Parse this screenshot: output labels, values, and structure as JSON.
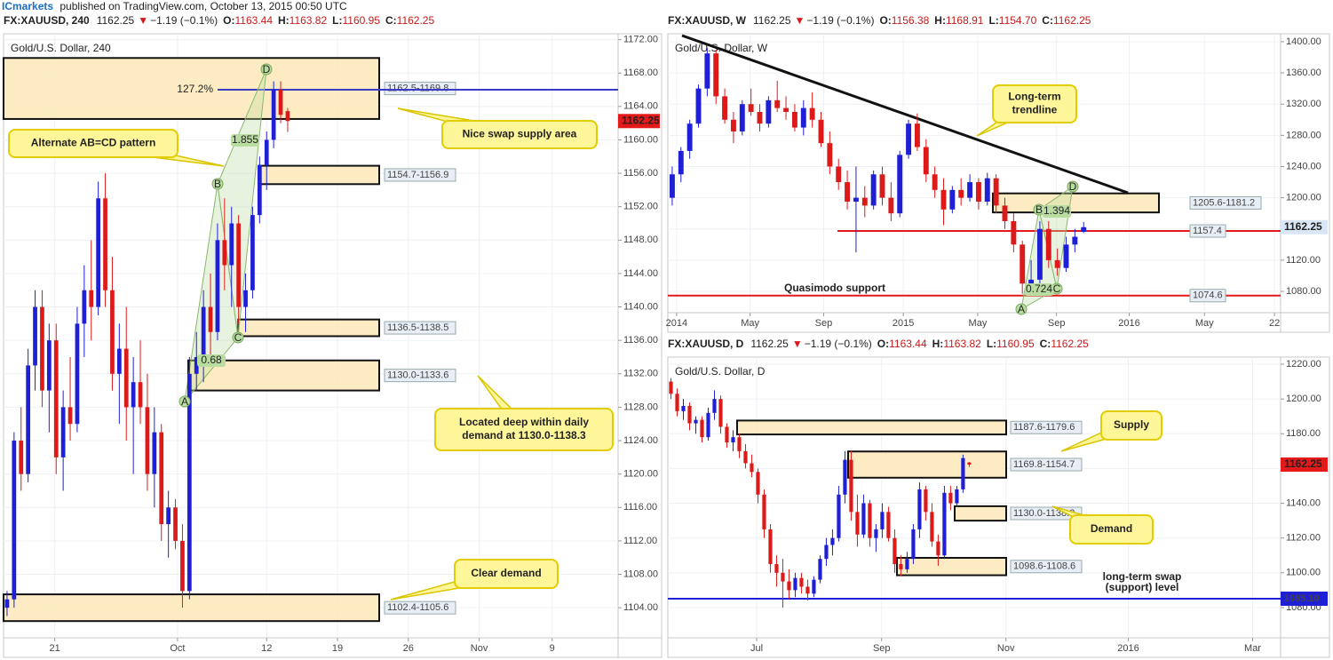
{
  "header": {
    "publisher": "ICmarkets",
    "published": "published on TradingView.com, October 13, 2015 00:50 UTC"
  },
  "chart_data": [
    {
      "type": "candlestick",
      "symbol": "FX:XAUUSD, 240",
      "last": "1162.25",
      "arrow": "▼",
      "change": "−1.19 (−0.1%)",
      "ohlc": [
        {
          "key": "O:",
          "value": "1163.44"
        },
        {
          "key": "H:",
          "value": "1163.82"
        },
        {
          "key": "L:",
          "value": "1160.95"
        },
        {
          "key": "C:",
          "value": "1162.25"
        }
      ],
      "title": "Gold/U.S. Dollar, 240",
      "up_color": "#1f1fd6",
      "down_color": "#dd1a1a",
      "open": [
        1104,
        1105,
        1124,
        1120,
        1133,
        1140,
        1130,
        1136,
        1122,
        1128,
        1126,
        1138,
        1142,
        1140,
        1153,
        1142,
        1132,
        1135,
        1128,
        1131,
        1128,
        1120,
        1125,
        1114,
        1116,
        1112,
        1106,
        1132,
        1134,
        1140,
        1137,
        1148,
        1145,
        1150,
        1140,
        1142,
        1151,
        1157,
        1160,
        1166,
        1163.44
      ],
      "high": [
        1106,
        1125,
        1128,
        1135,
        1142,
        1142,
        1138,
        1138,
        1130,
        1134,
        1140,
        1145,
        1148,
        1155,
        1156,
        1146,
        1138,
        1140,
        1134,
        1136,
        1132,
        1128,
        1126,
        1118,
        1117,
        1114,
        1134,
        1137,
        1142,
        1144,
        1150,
        1153,
        1152,
        1151,
        1144,
        1152,
        1158,
        1161,
        1167,
        1167,
        1163.82
      ],
      "low": [
        1103,
        1104,
        1118,
        1119,
        1130,
        1128,
        1125,
        1120,
        1118,
        1124,
        1125,
        1134,
        1136,
        1139,
        1140,
        1130,
        1126,
        1124,
        1120,
        1126,
        1118,
        1116,
        1112,
        1110,
        1111,
        1104,
        1105,
        1130,
        1131,
        1134,
        1136,
        1142,
        1140,
        1138,
        1137,
        1141,
        1150,
        1154,
        1159,
        1162,
        1160.95
      ],
      "close": [
        1105,
        1124,
        1120,
        1133,
        1140,
        1130,
        1136,
        1122,
        1128,
        1126,
        1138,
        1142,
        1140,
        1153,
        1142,
        1132,
        1135,
        1128,
        1131,
        1128,
        1120,
        1125,
        1114,
        1116,
        1112,
        1106,
        1132,
        1134,
        1140,
        1137,
        1148,
        1145,
        1150,
        1140,
        1142,
        1151,
        1157,
        1160,
        1166,
        1163,
        1162.25
      ],
      "xlim": [
        0,
        87.6
      ],
      "xticks": [
        {
          "value": 7.3,
          "label": "21"
        },
        {
          "value": 24.8,
          "label": "Oct"
        },
        {
          "value": 37.5,
          "label": "12"
        },
        {
          "value": 47.6,
          "label": "19"
        },
        {
          "value": 57.7,
          "label": "26"
        },
        {
          "value": 67.8,
          "label": "Nov"
        },
        {
          "value": 78.2,
          "label": "9"
        }
      ],
      "ylim": [
        1100.4,
        1172.7
      ],
      "yticks": [
        {
          "value": 1104,
          "label": "1104.00"
        },
        {
          "value": 1108,
          "label": "1108.00"
        },
        {
          "value": 1112,
          "label": "1112.00"
        },
        {
          "value": 1116,
          "label": "1116.00"
        },
        {
          "value": 1120,
          "label": "1120.00"
        },
        {
          "value": 1124,
          "label": "1124.00"
        },
        {
          "value": 1128,
          "label": "1128.00"
        },
        {
          "value": 1132,
          "label": "1132.00"
        },
        {
          "value": 1136,
          "label": "1136.00"
        },
        {
          "value": 1140,
          "label": "1140.00"
        },
        {
          "value": 1144,
          "label": "1144.00"
        },
        {
          "value": 1148,
          "label": "1148.00"
        },
        {
          "value": 1152,
          "label": "1152.00"
        },
        {
          "value": 1156,
          "label": "1156.00"
        },
        {
          "value": 1160,
          "label": "1160.00"
        },
        {
          "value": 1164,
          "label": "1164.00"
        },
        {
          "value": 1168,
          "label": "1168.00"
        },
        {
          "value": 1172,
          "label": "1172.00"
        }
      ],
      "last_price": 1162.25,
      "last_color": "#e41a1a",
      "zones": [
        {
          "label": "1162.5-1169.8",
          "low": 1162.5,
          "high": 1169.8
        },
        {
          "label": "1154.7-1156.9",
          "low": 1154.7,
          "high": 1156.9
        },
        {
          "label": "1136.5-1138.5",
          "low": 1136.5,
          "high": 1138.5
        },
        {
          "label": "1130.0-1133.6",
          "low": 1130.0,
          "high": 1133.6
        },
        {
          "label": "1102.4-1105.6",
          "low": 1102.4,
          "high": 1105.6
        }
      ],
      "levels": [
        {
          "label": "127.2%",
          "value": 1166.0,
          "color": "#3b3bc8"
        }
      ],
      "callouts": [
        {
          "lines": [
            "Alternate AB=CD pattern"
          ]
        },
        {
          "lines": [
            "Nice swap supply area"
          ]
        },
        {
          "lines": [
            "Located deep within daily",
            "demand at 1130.0-1138.3"
          ]
        },
        {
          "lines": [
            "Clear demand"
          ]
        }
      ],
      "pattern": {
        "points": [
          "A",
          "B",
          "C",
          "D"
        ],
        "ratios": [
          "1.855",
          "0.68"
        ]
      }
    },
    {
      "type": "candlestick",
      "symbol": "FX:XAUUSD, W",
      "last": "1162.25",
      "arrow": "▼",
      "change": "−1.19 (−0.1%)",
      "ohlc": [
        {
          "key": "O:",
          "value": "1156.38"
        },
        {
          "key": "H:",
          "value": "1168.91"
        },
        {
          "key": "L:",
          "value": "1154.70"
        },
        {
          "key": "C:",
          "value": "1162.25"
        }
      ],
      "title": "Gold/U.S. Dollar, W",
      "up_color": "#1f1fd6",
      "down_color": "#dd1a1a",
      "open": [
        1200,
        1230,
        1260,
        1295,
        1340,
        1385,
        1330,
        1300,
        1285,
        1320,
        1310,
        1295,
        1325,
        1315,
        1310,
        1290,
        1315,
        1300,
        1270,
        1240,
        1220,
        1195,
        1200,
        1190,
        1230,
        1200,
        1180,
        1255,
        1295,
        1265,
        1230,
        1210,
        1185,
        1210,
        1200,
        1220,
        1195,
        1225,
        1190,
        1170,
        1140,
        1090,
        1095,
        1160,
        1120,
        1110,
        1140,
        1156.38
      ],
      "high": [
        1240,
        1265,
        1300,
        1345,
        1392,
        1390,
        1340,
        1310,
        1325,
        1340,
        1320,
        1330,
        1350,
        1330,
        1320,
        1325,
        1335,
        1310,
        1285,
        1250,
        1235,
        1240,
        1215,
        1235,
        1240,
        1220,
        1260,
        1300,
        1308,
        1275,
        1240,
        1225,
        1215,
        1225,
        1230,
        1225,
        1232,
        1230,
        1200,
        1180,
        1145,
        1120,
        1170,
        1170,
        1135,
        1150,
        1160,
        1168.91
      ],
      "low": [
        1190,
        1220,
        1250,
        1290,
        1330,
        1320,
        1295,
        1270,
        1280,
        1305,
        1285,
        1290,
        1310,
        1300,
        1285,
        1280,
        1290,
        1265,
        1230,
        1210,
        1185,
        1130,
        1175,
        1185,
        1190,
        1170,
        1175,
        1250,
        1260,
        1220,
        1200,
        1165,
        1180,
        1190,
        1195,
        1185,
        1190,
        1180,
        1160,
        1130,
        1077,
        1080,
        1090,
        1110,
        1100,
        1105,
        1130,
        1154.7
      ],
      "close": [
        1230,
        1260,
        1295,
        1340,
        1385,
        1330,
        1300,
        1285,
        1320,
        1310,
        1295,
        1325,
        1315,
        1310,
        1290,
        1315,
        1300,
        1270,
        1240,
        1220,
        1195,
        1200,
        1190,
        1230,
        1200,
        1180,
        1255,
        1295,
        1265,
        1230,
        1210,
        1185,
        1210,
        1200,
        1220,
        1195,
        1225,
        1190,
        1170,
        1140,
        1090,
        1095,
        1160,
        1120,
        1110,
        1140,
        1150,
        1162.25
      ],
      "xlim": [
        0,
        70
      ],
      "xticks": [
        {
          "value": 1.0,
          "label": "2014"
        },
        {
          "value": 9.4,
          "label": "May"
        },
        {
          "value": 17.8,
          "label": "Sep"
        },
        {
          "value": 26.9,
          "label": "2015"
        },
        {
          "value": 35.4,
          "label": "May"
        },
        {
          "value": 44.4,
          "label": "Sep"
        },
        {
          "value": 52.7,
          "label": "2016"
        },
        {
          "value": 61.3,
          "label": "May"
        },
        {
          "value": 69.3,
          "label": "22"
        }
      ],
      "ylim": [
        1052.7,
        1410.2
      ],
      "yticks": [
        {
          "value": 1080,
          "label": "1080.00"
        },
        {
          "value": 1120,
          "label": "1120.00"
        },
        {
          "value": 1160,
          "label": "1160.00"
        },
        {
          "value": 1200,
          "label": "1200.00"
        },
        {
          "value": 1240,
          "label": "1240.00"
        },
        {
          "value": 1280,
          "label": "1280.00"
        },
        {
          "value": 1320,
          "label": "1320.00"
        },
        {
          "value": 1360,
          "label": "1360.00"
        },
        {
          "value": 1400,
          "label": "1400.00"
        }
      ],
      "last_price": 1162.25,
      "last_color": "#d9e6f5",
      "zones": [
        {
          "label": "1205.6-1181.2",
          "low": 1181.2,
          "high": 1205.6
        }
      ],
      "levels": [
        {
          "value": 1157.4,
          "color": "#e41a1a"
        },
        {
          "value": 1074.6,
          "color": "#e41a1a"
        }
      ],
      "callouts": [
        {
          "lines": [
            "Long-term",
            "trendline"
          ]
        },
        {
          "lines": [
            "Quasimodo support"
          ]
        }
      ],
      "pattern": {
        "points": [
          "A",
          "B",
          "C",
          "D"
        ],
        "ratios": [
          "1.394",
          "0.724"
        ]
      }
    },
    {
      "type": "candlestick",
      "symbol": "FX:XAUUSD, D",
      "last": "1162.25",
      "arrow": "▼",
      "change": "−1.19 (−0.1%)",
      "ohlc": [
        {
          "key": "O:",
          "value": "1163.44"
        },
        {
          "key": "H:",
          "value": "1163.82"
        },
        {
          "key": "L:",
          "value": "1160.95"
        },
        {
          "key": "C:",
          "value": "1162.25"
        }
      ],
      "title": "Gold/U.S. Dollar, D",
      "up_color": "#1f1fd6",
      "down_color": "#dd1a1a",
      "open": [
        1210,
        1203,
        1193,
        1196,
        1186,
        1188,
        1178,
        1192,
        1200,
        1184,
        1175,
        1178,
        1170,
        1163,
        1158,
        1145,
        1125,
        1105,
        1100,
        1095,
        1090,
        1097,
        1092,
        1088,
        1096,
        1108,
        1116,
        1120,
        1145,
        1165,
        1135,
        1122,
        1140,
        1120,
        1125,
        1135,
        1120,
        1105,
        1102,
        1108,
        1125,
        1148,
        1135,
        1118,
        1110,
        1146,
        1140,
        1148,
        1163.44
      ],
      "high": [
        1212,
        1206,
        1200,
        1198,
        1190,
        1190,
        1195,
        1205,
        1202,
        1186,
        1182,
        1180,
        1174,
        1168,
        1160,
        1148,
        1128,
        1110,
        1108,
        1102,
        1100,
        1100,
        1096,
        1098,
        1110,
        1120,
        1125,
        1150,
        1170,
        1170,
        1145,
        1145,
        1142,
        1128,
        1140,
        1138,
        1125,
        1110,
        1112,
        1128,
        1152,
        1150,
        1140,
        1122,
        1150,
        1150,
        1150,
        1168,
        1163.82
      ],
      "low": [
        1200,
        1190,
        1188,
        1182,
        1180,
        1175,
        1176,
        1188,
        1180,
        1172,
        1170,
        1166,
        1160,
        1155,
        1140,
        1120,
        1100,
        1092,
        1080,
        1085,
        1086,
        1088,
        1084,
        1086,
        1094,
        1104,
        1110,
        1118,
        1140,
        1130,
        1115,
        1120,
        1115,
        1112,
        1120,
        1118,
        1100,
        1098,
        1100,
        1105,
        1120,
        1130,
        1115,
        1104,
        1108,
        1136,
        1138,
        1146,
        1160.95
      ],
      "close": [
        1203,
        1193,
        1196,
        1186,
        1188,
        1178,
        1192,
        1200,
        1184,
        1175,
        1178,
        1170,
        1163,
        1158,
        1145,
        1125,
        1105,
        1100,
        1095,
        1090,
        1097,
        1092,
        1088,
        1096,
        1108,
        1116,
        1120,
        1145,
        1165,
        1135,
        1122,
        1140,
        1120,
        1125,
        1135,
        1120,
        1105,
        1102,
        1108,
        1125,
        1148,
        1135,
        1118,
        1110,
        1146,
        1140,
        1148,
        1166,
        1162.25
      ],
      "xlim": [
        0,
        98.6
      ],
      "xticks": [
        {
          "value": 14.3,
          "label": "Jul"
        },
        {
          "value": 34.4,
          "label": "Sep"
        },
        {
          "value": 54.4,
          "label": "Nov"
        },
        {
          "value": 74.1,
          "label": "2016"
        },
        {
          "value": 94.1,
          "label": "Mar"
        }
      ],
      "ylim": [
        1062.6,
        1224.1
      ],
      "yticks": [
        {
          "value": 1080,
          "label": "1080.00"
        },
        {
          "value": 1100,
          "label": "1100.00"
        },
        {
          "value": 1120,
          "label": "1120.00"
        },
        {
          "value": 1140,
          "label": "1140.00"
        },
        {
          "value": 1160,
          "label": "1160.00"
        },
        {
          "value": 1180,
          "label": "1180.00"
        },
        {
          "value": 1200,
          "label": "1200.00"
        },
        {
          "value": 1220,
          "label": "1220.00"
        }
      ],
      "last_price": 1162.25,
      "last_color": "#e41a1a",
      "zones": [
        {
          "label": "1187.6-1179.6",
          "low": 1179.6,
          "high": 1187.6
        },
        {
          "label": "1169.8-1154.7",
          "low": 1154.7,
          "high": 1169.8
        },
        {
          "label": "1130.0-1138.3",
          "low": 1130.0,
          "high": 1138.3
        },
        {
          "label": "1098.6-1108.6",
          "low": 1098.6,
          "high": 1108.6
        }
      ],
      "levels": [
        {
          "value": 1085.1,
          "label": "1085.10",
          "color": "#1f1fd6"
        }
      ],
      "callouts": [
        {
          "lines": [
            "Supply"
          ]
        },
        {
          "lines": [
            "Demand"
          ]
        },
        {
          "lines": [
            "long-term swap",
            "(support) level"
          ]
        }
      ]
    }
  ]
}
